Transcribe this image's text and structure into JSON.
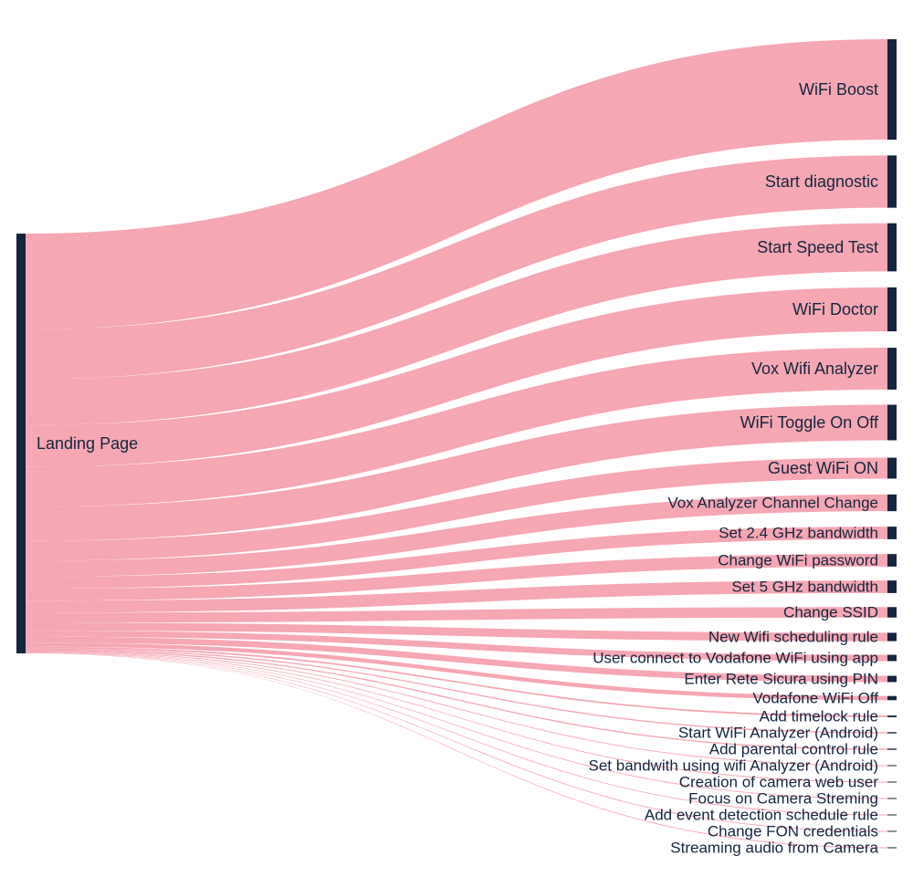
{
  "chart_data": {
    "type": "sankey",
    "title": "",
    "colors": {
      "link": "#f5a7b4",
      "node": "#14253d",
      "label": "#14253d"
    },
    "source": {
      "name": "Landing Page"
    },
    "targets": [
      {
        "name": "WiFi Boost",
        "value": 24
      },
      {
        "name": "Start diagnostic",
        "value": 12.5
      },
      {
        "name": "Start Speed Test",
        "value": 11.5
      },
      {
        "name": "WiFi Doctor",
        "value": 10.5
      },
      {
        "name": "Vox Wifi Analyzer",
        "value": 10
      },
      {
        "name": "WiFi Toggle On Off",
        "value": 8.5
      },
      {
        "name": "Guest WiFi ON",
        "value": 5
      },
      {
        "name": "Vox Analyzer Channel Change",
        "value": 4
      },
      {
        "name": "Set 2.4 GHz bandwidth",
        "value": 3
      },
      {
        "name": "Change WiFi password",
        "value": 3
      },
      {
        "name": "Set 5 GHz bandwidth",
        "value": 3
      },
      {
        "name": "Change SSID",
        "value": 2.5
      },
      {
        "name": "New Wifi scheduling rule",
        "value": 2
      },
      {
        "name": "User connect to Vodafone WiFi using app",
        "value": 1.5
      },
      {
        "name": "Enter Rete Sicura using PIN",
        "value": 1.5
      },
      {
        "name": "Vodafone WiFi Off",
        "value": 1
      },
      {
        "name": "Add timelock rule",
        "value": 0.4
      },
      {
        "name": "Start WiFi Analyzer (Android)",
        "value": 0.3
      },
      {
        "name": "Add parental control rule",
        "value": 0.3
      },
      {
        "name": "Set bandwith using wifi Analyzer (Android)",
        "value": 0.2
      },
      {
        "name": "Creation of camera web user",
        "value": 0.15
      },
      {
        "name": "Focus on Camera Streming",
        "value": 0.12
      },
      {
        "name": "Add event detection schedule rule",
        "value": 0.1
      },
      {
        "name": "Change FON credentials",
        "value": 0.08
      },
      {
        "name": "Streaming audio from Camera",
        "value": 0.05
      }
    ]
  }
}
